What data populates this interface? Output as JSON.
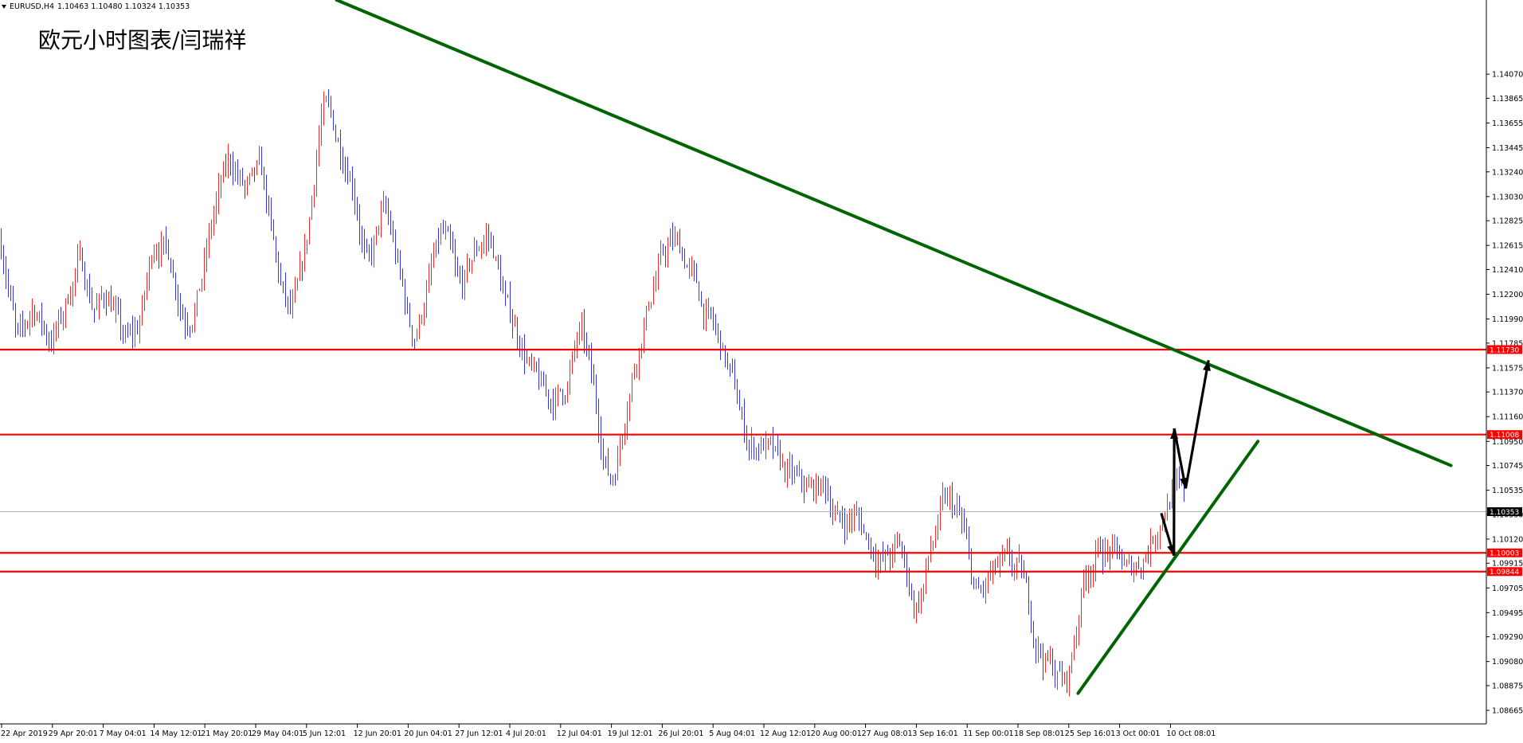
{
  "window": {
    "symbol_label": "EURUSD,H4",
    "ohlc_label": "1.10463 1.10480 1.10324 1.10353",
    "menu_icon": "triangle-down-icon"
  },
  "chart_data": {
    "type": "candlestick",
    "title": "",
    "annotation": "欧元小时图表/闫瑞祥",
    "ylim": [
      1.0855,
      1.147
    ],
    "y_ticks": [
      "1.14070",
      "1.13865",
      "1.13655",
      "1.13445",
      "1.13240",
      "1.13030",
      "1.12825",
      "1.12615",
      "1.12410",
      "1.12200",
      "1.11990",
      "1.11785",
      "1.11575",
      "1.11370",
      "1.11160",
      "1.10950",
      "1.10745",
      "1.10535",
      "1.10330",
      "1.10120",
      "1.09915",
      "1.09705",
      "1.09495",
      "1.09290",
      "1.09080",
      "1.08875",
      "1.08665"
    ],
    "x_ticks": [
      "22 Apr 2019",
      "29 Apr 20:01",
      "7 May 04:01",
      "14 May 12:01",
      "21 May 20:01",
      "29 May 04:01",
      "5 Jun 12:01",
      "12 Jun 20:01",
      "20 Jun 04:01",
      "27 Jun 12:01",
      "4 Jul 20:01",
      "12 Jul 04:01",
      "19 Jul 12:01",
      "26 Jul 20:01",
      "5 Aug 04:01",
      "12 Aug 12:01",
      "20 Aug 00:01",
      "27 Aug 08:01",
      "3 Sep 16:01",
      "11 Sep 00:01",
      "18 Sep 08:01",
      "25 Sep 16:01",
      "3 Oct 00:01",
      "10 Oct 08:01"
    ],
    "bull_color": "#ff2a2a",
    "bear_color": "#3333ff",
    "anchor_prices": [
      1.1265,
      1.116,
      1.122,
      1.1175,
      1.1205,
      1.126,
      1.12,
      1.1225,
      1.117,
      1.1195,
      1.128,
      1.125,
      1.119,
      1.123,
      1.1305,
      1.134,
      1.13,
      1.133,
      1.123,
      1.119,
      1.127,
      1.14,
      1.1345,
      1.132,
      1.1225,
      1.1305,
      1.1235,
      1.117,
      1.124,
      1.128,
      1.121,
      1.126,
      1.1275,
      1.1205,
      1.118,
      1.114,
      1.1128,
      1.114,
      1.12,
      1.1115,
      1.1045,
      1.114,
      1.1195,
      1.1245,
      1.127,
      1.1245,
      1.1205,
      1.118,
      1.114,
      1.1085,
      1.1095,
      1.1072,
      1.106,
      1.105,
      1.106,
      1.102,
      1.1035,
      1.1005,
      1.099,
      1.101,
      1.094,
      1.101,
      1.105,
      1.1025,
      1.095,
      1.0985,
      1.099,
      1.098,
      1.0915,
      1.09,
      1.0885,
      1.099,
      1.1005,
      1.1,
      1.098,
      1.1,
      1.103,
      1.106,
      1.1035
    ],
    "levels": [
      {
        "price": 1.1173,
        "label": "1.11730",
        "color": "#ff0000"
      },
      {
        "price": 1.11008,
        "label": "1.11008",
        "color": "#ff0000"
      },
      {
        "price": 1.10003,
        "label": "1.10003",
        "color": "#ff0000"
      },
      {
        "price": 1.09844,
        "label": "1.09844",
        "color": "#ff0000"
      }
    ],
    "current_price": {
      "price": 1.10353,
      "label": "1.10353",
      "color": "#000000"
    },
    "trendlines": [
      {
        "name": "resistance",
        "color": "#006400",
        "from": {
          "x_frac": 0.2265,
          "price": 1.147
        },
        "to": {
          "x_frac": 0.9762,
          "price": 1.10745
        }
      },
      {
        "name": "support",
        "color": "#006400",
        "from": {
          "x_frac": 0.7253,
          "price": 1.0881
        },
        "to": {
          "x_frac": 0.8463,
          "price": 1.1095
        }
      }
    ],
    "forecast_arrow": {
      "color": "#000000",
      "points": [
        {
          "x_frac": 0.7813,
          "price": 1.1034
        },
        {
          "x_frac": 0.7898,
          "price": 1.0998
        },
        {
          "x_frac": 0.79,
          "price": 1.1106
        },
        {
          "x_frac": 0.7977,
          "price": 1.1055
        },
        {
          "x_frac": 0.8131,
          "price": 1.1164
        }
      ]
    }
  }
}
